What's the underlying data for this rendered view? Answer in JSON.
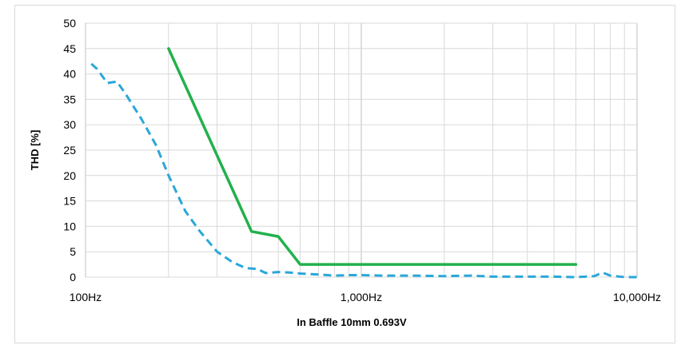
{
  "chart_data": {
    "type": "line",
    "title": "",
    "xlabel": "In Baffle 10mm 0.693V",
    "ylabel": "THD [%]",
    "x_scale": "log",
    "xlim": [
      100,
      10000
    ],
    "ylim": [
      0,
      50
    ],
    "x_ticks": [
      100,
      1000,
      10000
    ],
    "x_tick_labels": [
      "100Hz",
      "1,000Hz",
      "10,000Hz"
    ],
    "y_ticks": [
      0,
      5,
      10,
      15,
      20,
      25,
      30,
      35,
      40,
      45,
      50
    ],
    "y_tick_labels": [
      "0",
      "5",
      "10",
      "15",
      "20",
      "25",
      "30",
      "35",
      "40",
      "45",
      "50"
    ],
    "grid": true,
    "legend": "none",
    "series": [
      {
        "color": "#22b14c",
        "style": "solid",
        "x": [
          200,
          400,
          500,
          600,
          6000
        ],
        "y": [
          45,
          9,
          8,
          2.5,
          2.5
        ]
      },
      {
        "color": "#2aa7d8",
        "style": "dashed",
        "x": [
          105,
          110,
          120,
          130,
          140,
          160,
          180,
          200,
          230,
          260,
          300,
          340,
          380,
          420,
          450,
          500,
          550,
          600,
          700,
          800,
          900,
          1000,
          1200,
          1500,
          2000,
          2500,
          3000,
          4000,
          5000,
          6000,
          6500,
          7000,
          7500,
          8000,
          9000,
          10000
        ],
        "y": [
          42,
          41,
          38.2,
          38.5,
          36,
          31,
          26,
          20,
          13,
          9,
          5,
          3,
          1.8,
          1.6,
          0.8,
          1.0,
          0.9,
          0.7,
          0.5,
          0.3,
          0.4,
          0.4,
          0.3,
          0.3,
          0.2,
          0.3,
          0.1,
          0.1,
          0.1,
          0.0,
          0.1,
          0.2,
          0.9,
          0.3,
          0.0,
          0.0
        ]
      }
    ]
  }
}
